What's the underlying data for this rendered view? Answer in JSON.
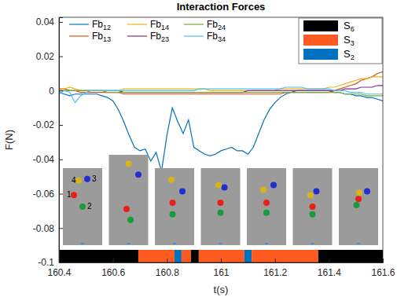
{
  "chart_data": {
    "type": "line",
    "title": "Interaction Forces",
    "x_label": "t(s)",
    "y_label": "F(N)",
    "xlim": [
      160.4,
      161.6
    ],
    "xticks": [
      160.4,
      160.6,
      160.8,
      161,
      161.2,
      161.4,
      161.6
    ],
    "ylim": [
      -0.1,
      0.0427
    ],
    "yticks": [
      -0.1,
      -0.08,
      -0.06,
      -0.04,
      -0.02,
      0,
      0.02,
      0.04
    ],
    "grid": false,
    "legend": "upper left",
    "x": [
      160.4,
      160.42,
      160.44,
      160.46,
      160.48,
      160.5,
      160.52,
      160.54,
      160.56,
      160.58,
      160.6,
      160.62,
      160.64,
      160.66,
      160.68,
      160.7,
      160.72,
      160.74,
      160.76,
      160.78,
      160.8,
      160.82,
      160.84,
      160.86,
      160.88,
      160.9,
      160.92,
      160.94,
      160.96,
      160.98,
      161,
      161.02,
      161.04,
      161.06,
      161.08,
      161.1,
      161.12,
      161.14,
      161.16,
      161.18,
      161.2,
      161.22,
      161.24,
      161.26,
      161.28,
      161.3,
      161.32,
      161.34,
      161.36,
      161.38,
      161.4,
      161.42,
      161.44,
      161.46,
      161.48,
      161.5,
      161.52,
      161.54,
      161.56,
      161.58,
      161.6
    ],
    "series": [
      {
        "name": "Fb12",
        "color": "#0072BD",
        "values": [
          -0.001,
          -0.002,
          -0.003,
          -0.002,
          -0.002,
          -0.002,
          -0.002,
          -0.002,
          -0.003,
          -0.004,
          -0.006,
          -0.011,
          -0.018,
          -0.026,
          -0.033,
          -0.035,
          -0.034,
          -0.041,
          -0.036,
          -0.047,
          -0.026,
          -0.01,
          -0.018,
          -0.025,
          -0.017,
          -0.033,
          -0.035,
          -0.037,
          -0.038,
          -0.037,
          -0.035,
          -0.034,
          -0.033,
          -0.035,
          -0.035,
          -0.037,
          -0.033,
          -0.025,
          -0.017,
          -0.011,
          -0.007,
          -0.004,
          -0.002,
          -0.001,
          0,
          0,
          0,
          0,
          0,
          0,
          0,
          -0.001,
          -0.001,
          -0.002,
          -0.002,
          -0.003,
          -0.003,
          -0.004,
          -0.004,
          -0.005,
          -0.006
        ]
      },
      {
        "name": "Fb13",
        "color": "#D95319",
        "values": [
          0.001,
          0.001,
          0,
          0,
          -0.001,
          -0.001,
          -0.001,
          -0.001,
          -0.001,
          -0.001,
          -0.001,
          -0.001,
          -0.002,
          -0.002,
          -0.002,
          -0.002,
          -0.002,
          -0.002,
          -0.002,
          -0.002,
          -0.002,
          -0.002,
          -0.002,
          -0.002,
          -0.002,
          -0.002,
          -0.002,
          -0.002,
          -0.002,
          -0.002,
          -0.002,
          -0.002,
          -0.002,
          -0.002,
          -0.002,
          -0.002,
          -0.002,
          -0.002,
          -0.002,
          -0.002,
          -0.002,
          -0.002,
          -0.001,
          -0.001,
          -0.001,
          -0.001,
          -0.001,
          -0.001,
          -0.001,
          -0.001,
          -0.001,
          0,
          0.001,
          0.002,
          0.003,
          0.004,
          0.006,
          0.007,
          0.008,
          0.01,
          0.011
        ]
      },
      {
        "name": "Fb14",
        "color": "#EDB120",
        "values": [
          0.001,
          0.001,
          0.002,
          0.001,
          0,
          0,
          0,
          0,
          0,
          0,
          0,
          0,
          0.001,
          0.001,
          0.001,
          0.001,
          0.001,
          0.001,
          0.001,
          0.001,
          0.001,
          0.001,
          0.001,
          0.001,
          0.001,
          0.001,
          0.001,
          0.001,
          0,
          0,
          0,
          0,
          0,
          0,
          0,
          0,
          0,
          0,
          0,
          0,
          0,
          0.001,
          0.001,
          0.001,
          0.001,
          0.001,
          0.001,
          0.001,
          0.001,
          0.001,
          0.002,
          0.002,
          0.003,
          0.004,
          0.005,
          0.006,
          0.007,
          0.007,
          0.008,
          0.008,
          0.008
        ]
      },
      {
        "name": "Fb23",
        "color": "#7E2F8E",
        "values": [
          0,
          0,
          0,
          0,
          0,
          0,
          0,
          0,
          0,
          0,
          0,
          0,
          -0.001,
          -0.001,
          -0.001,
          -0.001,
          -0.001,
          -0.001,
          -0.001,
          -0.001,
          -0.001,
          -0.001,
          -0.001,
          -0.001,
          -0.001,
          -0.001,
          -0.001,
          -0.001,
          -0.001,
          -0.001,
          -0.001,
          -0.001,
          -0.001,
          -0.001,
          -0.001,
          0,
          0,
          0,
          0,
          0,
          0,
          0,
          0,
          0,
          0,
          0,
          0,
          0,
          0,
          0,
          0,
          0,
          0,
          0.001,
          0.001,
          0.001,
          0.002,
          0.002,
          0.002,
          0.003,
          0.003
        ]
      },
      {
        "name": "Fb24",
        "color": "#77AC30",
        "values": [
          0,
          0,
          0,
          0,
          0,
          0,
          0,
          0,
          0,
          -0.001,
          -0.001,
          -0.001,
          -0.001,
          -0.001,
          -0.001,
          -0.001,
          -0.001,
          -0.001,
          -0.001,
          -0.001,
          -0.001,
          -0.001,
          -0.001,
          -0.001,
          -0.001,
          -0.001,
          -0.001,
          -0.001,
          -0.001,
          -0.001,
          -0.001,
          -0.001,
          -0.001,
          -0.001,
          -0.001,
          -0.001,
          -0.001,
          -0.001,
          -0.001,
          -0.001,
          -0.001,
          -0.001,
          -0.001,
          -0.001,
          -0.001,
          -0.001,
          -0.001,
          -0.001,
          -0.001,
          -0.001,
          -0.001,
          -0.001,
          -0.001,
          -0.002,
          -0.002,
          -0.002,
          -0.002,
          -0.003,
          -0.003,
          -0.003,
          -0.003
        ]
      },
      {
        "name": "Fb34",
        "color": "#4DBEEE",
        "values": [
          -0.002,
          0,
          -0.001,
          -0.007,
          -0.003,
          -0.001,
          0,
          0,
          0,
          0,
          0,
          0,
          0,
          0,
          0,
          0,
          0,
          0,
          0,
          0,
          0,
          0,
          0,
          0,
          0,
          0,
          0.001,
          0.001,
          0.001,
          0.001,
          0.001,
          0.001,
          0.001,
          0.001,
          0.001,
          0.001,
          0.001,
          0.001,
          0.001,
          0.001,
          0.001,
          0.001,
          0.002,
          0.002,
          0.002,
          0.002,
          0.001,
          0.001,
          0.001,
          0.001,
          0.001,
          0,
          0,
          0,
          -0.001,
          -0.001,
          -0.001,
          -0.002,
          -0.002,
          -0.002,
          -0.002
        ]
      }
    ],
    "states": [
      {
        "name": "S6",
        "color": "#000000"
      },
      {
        "name": "S3",
        "color": "#FF5A1F"
      },
      {
        "name": "S2",
        "color": "#0070C0"
      }
    ],
    "segments": [
      {
        "state": "S6",
        "start": 160.4,
        "end": 160.694
      },
      {
        "state": "S3",
        "start": 160.694,
        "end": 160.828
      },
      {
        "state": "S2",
        "start": 160.828,
        "end": 160.854
      },
      {
        "state": "S3",
        "start": 160.854,
        "end": 160.889
      },
      {
        "state": "S6",
        "start": 160.889,
        "end": 160.918
      },
      {
        "state": "S3",
        "start": 160.918,
        "end": 161.087
      },
      {
        "state": "S2",
        "start": 161.087,
        "end": 161.114
      },
      {
        "state": "S3",
        "start": 161.114,
        "end": 161.361
      },
      {
        "state": "S6",
        "start": 161.361,
        "end": 161.6
      }
    ],
    "ball_labels": [
      "1",
      "2",
      "3",
      "4"
    ]
  }
}
